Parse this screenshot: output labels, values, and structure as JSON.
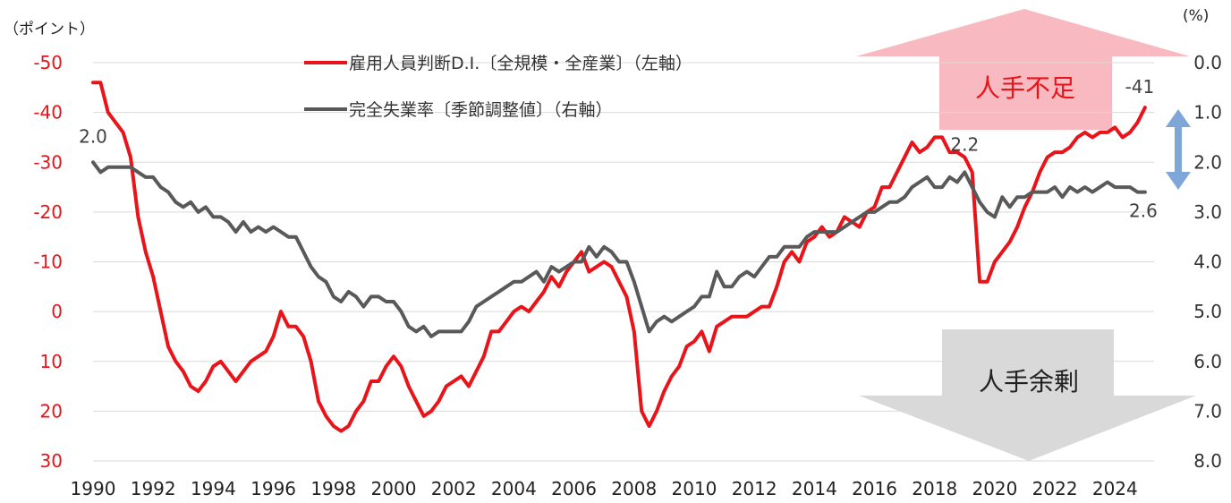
{
  "chart_data": {
    "type": "line",
    "left_axis_unit": "（ポイント）",
    "right_axis_unit": "(%)",
    "left_ticks": [
      "-50",
      "-40",
      "-30",
      "-20",
      "-10",
      "0",
      "10",
      "20",
      "30"
    ],
    "right_ticks": [
      "0.0",
      "1.0",
      "2.0",
      "3.0",
      "4.0",
      "5.0",
      "6.0",
      "7.0",
      "8.0"
    ],
    "x_ticks": [
      "1990",
      "1992",
      "1994",
      "1996",
      "1998",
      "2000",
      "2002",
      "2004",
      "2006",
      "2008",
      "2010",
      "2012",
      "2014",
      "2016",
      "2018",
      "2020",
      "2022",
      "2024"
    ],
    "left_ylim": [
      -50,
      30
    ],
    "right_ylim": [
      0,
      8
    ],
    "xlim": [
      1990,
      2025.3
    ],
    "series": [
      {
        "name": "雇用人員判断D.I.〔全規模・全産業〕（左軸）",
        "axis": "left",
        "color": "#e8141a",
        "points": [
          [
            1990.0,
            -46
          ],
          [
            1990.25,
            -46
          ],
          [
            1990.5,
            -40
          ],
          [
            1990.75,
            -38
          ],
          [
            1991.0,
            -36
          ],
          [
            1991.25,
            -31
          ],
          [
            1991.5,
            -19
          ],
          [
            1991.75,
            -12
          ],
          [
            1992.0,
            -7
          ],
          [
            1992.25,
            0
          ],
          [
            1992.5,
            7
          ],
          [
            1992.75,
            10
          ],
          [
            1993.0,
            12
          ],
          [
            1993.25,
            15
          ],
          [
            1993.5,
            16
          ],
          [
            1993.75,
            14
          ],
          [
            1994.0,
            11
          ],
          [
            1994.25,
            10
          ],
          [
            1994.5,
            12
          ],
          [
            1994.75,
            14
          ],
          [
            1995.0,
            12
          ],
          [
            1995.25,
            10
          ],
          [
            1995.5,
            9
          ],
          [
            1995.75,
            8
          ],
          [
            1996.0,
            5
          ],
          [
            1996.25,
            0
          ],
          [
            1996.5,
            3
          ],
          [
            1996.75,
            3
          ],
          [
            1997.0,
            5
          ],
          [
            1997.25,
            10
          ],
          [
            1997.5,
            18
          ],
          [
            1997.75,
            21
          ],
          [
            1998.0,
            23
          ],
          [
            1998.25,
            24
          ],
          [
            1998.5,
            23
          ],
          [
            1998.75,
            20
          ],
          [
            1999.0,
            18
          ],
          [
            1999.25,
            14
          ],
          [
            1999.5,
            14
          ],
          [
            1999.75,
            11
          ],
          [
            2000.0,
            9
          ],
          [
            2000.25,
            11
          ],
          [
            2000.5,
            15
          ],
          [
            2000.75,
            18
          ],
          [
            2001.0,
            21
          ],
          [
            2001.25,
            20
          ],
          [
            2001.5,
            18
          ],
          [
            2001.75,
            15
          ],
          [
            2002.0,
            14
          ],
          [
            2002.25,
            13
          ],
          [
            2002.5,
            15
          ],
          [
            2002.75,
            12
          ],
          [
            2003.0,
            9
          ],
          [
            2003.25,
            4
          ],
          [
            2003.5,
            4
          ],
          [
            2003.75,
            2
          ],
          [
            2004.0,
            0
          ],
          [
            2004.25,
            -1
          ],
          [
            2004.5,
            0
          ],
          [
            2004.75,
            -2
          ],
          [
            2005.0,
            -4
          ],
          [
            2005.25,
            -7
          ],
          [
            2005.5,
            -5
          ],
          [
            2005.75,
            -8
          ],
          [
            2006.0,
            -10
          ],
          [
            2006.25,
            -12
          ],
          [
            2006.5,
            -8
          ],
          [
            2006.75,
            -9
          ],
          [
            2007.0,
            -10
          ],
          [
            2007.25,
            -9
          ],
          [
            2007.5,
            -6
          ],
          [
            2007.75,
            -3
          ],
          [
            2008.0,
            4
          ],
          [
            2008.25,
            20
          ],
          [
            2008.5,
            23
          ],
          [
            2008.75,
            20
          ],
          [
            2009.0,
            16
          ],
          [
            2009.25,
            13
          ],
          [
            2009.5,
            11
          ],
          [
            2009.75,
            7
          ],
          [
            2010.0,
            6
          ],
          [
            2010.25,
            4
          ],
          [
            2010.5,
            8
          ],
          [
            2010.75,
            3
          ],
          [
            2011.0,
            2
          ],
          [
            2011.25,
            1
          ],
          [
            2011.5,
            1
          ],
          [
            2011.75,
            1
          ],
          [
            2012.0,
            0
          ],
          [
            2012.25,
            -1
          ],
          [
            2012.5,
            -1
          ],
          [
            2012.75,
            -5
          ],
          [
            2013.0,
            -10
          ],
          [
            2013.25,
            -12
          ],
          [
            2013.5,
            -10
          ],
          [
            2013.75,
            -14
          ],
          [
            2014.0,
            -15
          ],
          [
            2014.25,
            -17
          ],
          [
            2014.5,
            -15
          ],
          [
            2014.75,
            -16
          ],
          [
            2015.0,
            -19
          ],
          [
            2015.25,
            -18
          ],
          [
            2015.5,
            -17
          ],
          [
            2015.75,
            -20
          ],
          [
            2016.0,
            -21
          ],
          [
            2016.25,
            -25
          ],
          [
            2016.5,
            -25
          ],
          [
            2016.75,
            -28
          ],
          [
            2017.0,
            -31
          ],
          [
            2017.25,
            -34
          ],
          [
            2017.5,
            -32
          ],
          [
            2017.75,
            -33
          ],
          [
            2018.0,
            -35
          ],
          [
            2018.25,
            -35
          ],
          [
            2018.5,
            -32
          ],
          [
            2018.75,
            -32
          ],
          [
            2019.0,
            -31
          ],
          [
            2019.25,
            -28
          ],
          [
            2019.5,
            -6
          ],
          [
            2019.75,
            -6
          ],
          [
            2020.0,
            -10
          ],
          [
            2020.25,
            -12
          ],
          [
            2020.5,
            -14
          ],
          [
            2020.75,
            -17
          ],
          [
            2021.0,
            -21
          ],
          [
            2021.25,
            -24
          ],
          [
            2021.5,
            -28
          ],
          [
            2021.75,
            -31
          ],
          [
            2022.0,
            -32
          ],
          [
            2022.25,
            -32
          ],
          [
            2022.5,
            -33
          ],
          [
            2022.75,
            -35
          ],
          [
            2023.0,
            -36
          ],
          [
            2023.25,
            -35
          ],
          [
            2023.5,
            -36
          ],
          [
            2023.75,
            -36
          ],
          [
            2024.0,
            -37
          ],
          [
            2024.25,
            -35
          ],
          [
            2024.5,
            -36
          ],
          [
            2024.75,
            -38
          ],
          [
            2025.0,
            -41
          ]
        ]
      },
      {
        "name": "完全失業率〔季節調整値〕（右軸）",
        "axis": "right",
        "color": "#595959",
        "points": [
          [
            1990.0,
            2.0
          ],
          [
            1990.25,
            2.2
          ],
          [
            1990.5,
            2.1
          ],
          [
            1990.75,
            2.1
          ],
          [
            1991.0,
            2.1
          ],
          [
            1991.25,
            2.1
          ],
          [
            1991.5,
            2.2
          ],
          [
            1991.75,
            2.3
          ],
          [
            1992.0,
            2.3
          ],
          [
            1992.25,
            2.5
          ],
          [
            1992.5,
            2.6
          ],
          [
            1992.75,
            2.8
          ],
          [
            1993.0,
            2.9
          ],
          [
            1993.25,
            2.8
          ],
          [
            1993.5,
            3.0
          ],
          [
            1993.75,
            2.9
          ],
          [
            1994.0,
            3.1
          ],
          [
            1994.25,
            3.1
          ],
          [
            1994.5,
            3.2
          ],
          [
            1994.75,
            3.4
          ],
          [
            1995.0,
            3.2
          ],
          [
            1995.25,
            3.4
          ],
          [
            1995.5,
            3.3
          ],
          [
            1995.75,
            3.4
          ],
          [
            1996.0,
            3.3
          ],
          [
            1996.25,
            3.4
          ],
          [
            1996.5,
            3.5
          ],
          [
            1996.75,
            3.5
          ],
          [
            1997.0,
            3.8
          ],
          [
            1997.25,
            4.1
          ],
          [
            1997.5,
            4.3
          ],
          [
            1997.75,
            4.4
          ],
          [
            1998.0,
            4.7
          ],
          [
            1998.25,
            4.8
          ],
          [
            1998.5,
            4.6
          ],
          [
            1998.75,
            4.7
          ],
          [
            1999.0,
            4.9
          ],
          [
            1999.25,
            4.7
          ],
          [
            1999.5,
            4.7
          ],
          [
            1999.75,
            4.8
          ],
          [
            2000.0,
            4.8
          ],
          [
            2000.25,
            5.0
          ],
          [
            2000.5,
            5.3
          ],
          [
            2000.75,
            5.4
          ],
          [
            2001.0,
            5.3
          ],
          [
            2001.25,
            5.5
          ],
          [
            2001.5,
            5.4
          ],
          [
            2001.75,
            5.4
          ],
          [
            2002.0,
            5.4
          ],
          [
            2002.25,
            5.4
          ],
          [
            2002.5,
            5.2
          ],
          [
            2002.75,
            4.9
          ],
          [
            2003.0,
            4.8
          ],
          [
            2003.25,
            4.7
          ],
          [
            2003.5,
            4.6
          ],
          [
            2003.75,
            4.5
          ],
          [
            2004.0,
            4.4
          ],
          [
            2004.25,
            4.4
          ],
          [
            2004.5,
            4.3
          ],
          [
            2004.75,
            4.2
          ],
          [
            2005.0,
            4.4
          ],
          [
            2005.25,
            4.1
          ],
          [
            2005.5,
            4.2
          ],
          [
            2005.75,
            4.1
          ],
          [
            2006.0,
            4.0
          ],
          [
            2006.25,
            4.0
          ],
          [
            2006.5,
            3.7
          ],
          [
            2006.75,
            3.9
          ],
          [
            2007.0,
            3.7
          ],
          [
            2007.25,
            3.8
          ],
          [
            2007.5,
            4.0
          ],
          [
            2007.75,
            4.0
          ],
          [
            2008.0,
            4.4
          ],
          [
            2008.25,
            4.9
          ],
          [
            2008.5,
            5.4
          ],
          [
            2008.75,
            5.2
          ],
          [
            2009.0,
            5.1
          ],
          [
            2009.25,
            5.2
          ],
          [
            2009.5,
            5.1
          ],
          [
            2009.75,
            5.0
          ],
          [
            2010.0,
            4.9
          ],
          [
            2010.25,
            4.7
          ],
          [
            2010.5,
            4.7
          ],
          [
            2010.75,
            4.2
          ],
          [
            2011.0,
            4.5
          ],
          [
            2011.25,
            4.5
          ],
          [
            2011.5,
            4.3
          ],
          [
            2011.75,
            4.2
          ],
          [
            2012.0,
            4.3
          ],
          [
            2012.25,
            4.1
          ],
          [
            2012.5,
            3.9
          ],
          [
            2012.75,
            3.9
          ],
          [
            2013.0,
            3.7
          ],
          [
            2013.25,
            3.7
          ],
          [
            2013.5,
            3.7
          ],
          [
            2013.75,
            3.5
          ],
          [
            2014.0,
            3.4
          ],
          [
            2014.25,
            3.4
          ],
          [
            2014.5,
            3.4
          ],
          [
            2014.75,
            3.4
          ],
          [
            2015.0,
            3.3
          ],
          [
            2015.25,
            3.2
          ],
          [
            2015.5,
            3.1
          ],
          [
            2015.75,
            3.0
          ],
          [
            2016.0,
            3.0
          ],
          [
            2016.25,
            2.9
          ],
          [
            2016.5,
            2.8
          ],
          [
            2016.75,
            2.8
          ],
          [
            2017.0,
            2.7
          ],
          [
            2017.25,
            2.5
          ],
          [
            2017.5,
            2.4
          ],
          [
            2017.75,
            2.3
          ],
          [
            2018.0,
            2.5
          ],
          [
            2018.25,
            2.5
          ],
          [
            2018.5,
            2.3
          ],
          [
            2018.75,
            2.4
          ],
          [
            2019.0,
            2.2
          ],
          [
            2019.25,
            2.5
          ],
          [
            2019.5,
            2.8
          ],
          [
            2019.75,
            3.0
          ],
          [
            2020.0,
            3.1
          ],
          [
            2020.25,
            2.7
          ],
          [
            2020.5,
            2.9
          ],
          [
            2020.75,
            2.7
          ],
          [
            2021.0,
            2.7
          ],
          [
            2021.25,
            2.6
          ],
          [
            2021.5,
            2.6
          ],
          [
            2021.75,
            2.6
          ],
          [
            2022.0,
            2.5
          ],
          [
            2022.25,
            2.7
          ],
          [
            2022.5,
            2.5
          ],
          [
            2022.75,
            2.6
          ],
          [
            2023.0,
            2.5
          ],
          [
            2023.25,
            2.6
          ],
          [
            2023.5,
            2.5
          ],
          [
            2023.75,
            2.4
          ],
          [
            2024.0,
            2.5
          ],
          [
            2024.25,
            2.5
          ],
          [
            2024.5,
            2.5
          ],
          [
            2024.75,
            2.6
          ],
          [
            2025.0,
            2.6
          ]
        ]
      }
    ],
    "annotations": [
      {
        "text": "2.0",
        "x": 1990.0,
        "value": 2.0,
        "axis": "right"
      },
      {
        "text": "2.2",
        "x": 2019.0,
        "value": 2.2,
        "axis": "right"
      },
      {
        "text": "2.6",
        "x": 2025.0,
        "value": 2.6,
        "axis": "right"
      },
      {
        "text": "-41",
        "x": 2025.0,
        "value": -41,
        "axis": "left"
      }
    ],
    "banners": {
      "up": {
        "text": "人手不足",
        "color": "#f8b9c0",
        "text_color": "#e8141a"
      },
      "down": {
        "text": "人手余剰",
        "color": "#d9d9d9",
        "text_color": "#222222"
      }
    },
    "gap_arrow_color": "#7ea6d8",
    "grid": "horizontal",
    "legend_position": "top-center"
  }
}
